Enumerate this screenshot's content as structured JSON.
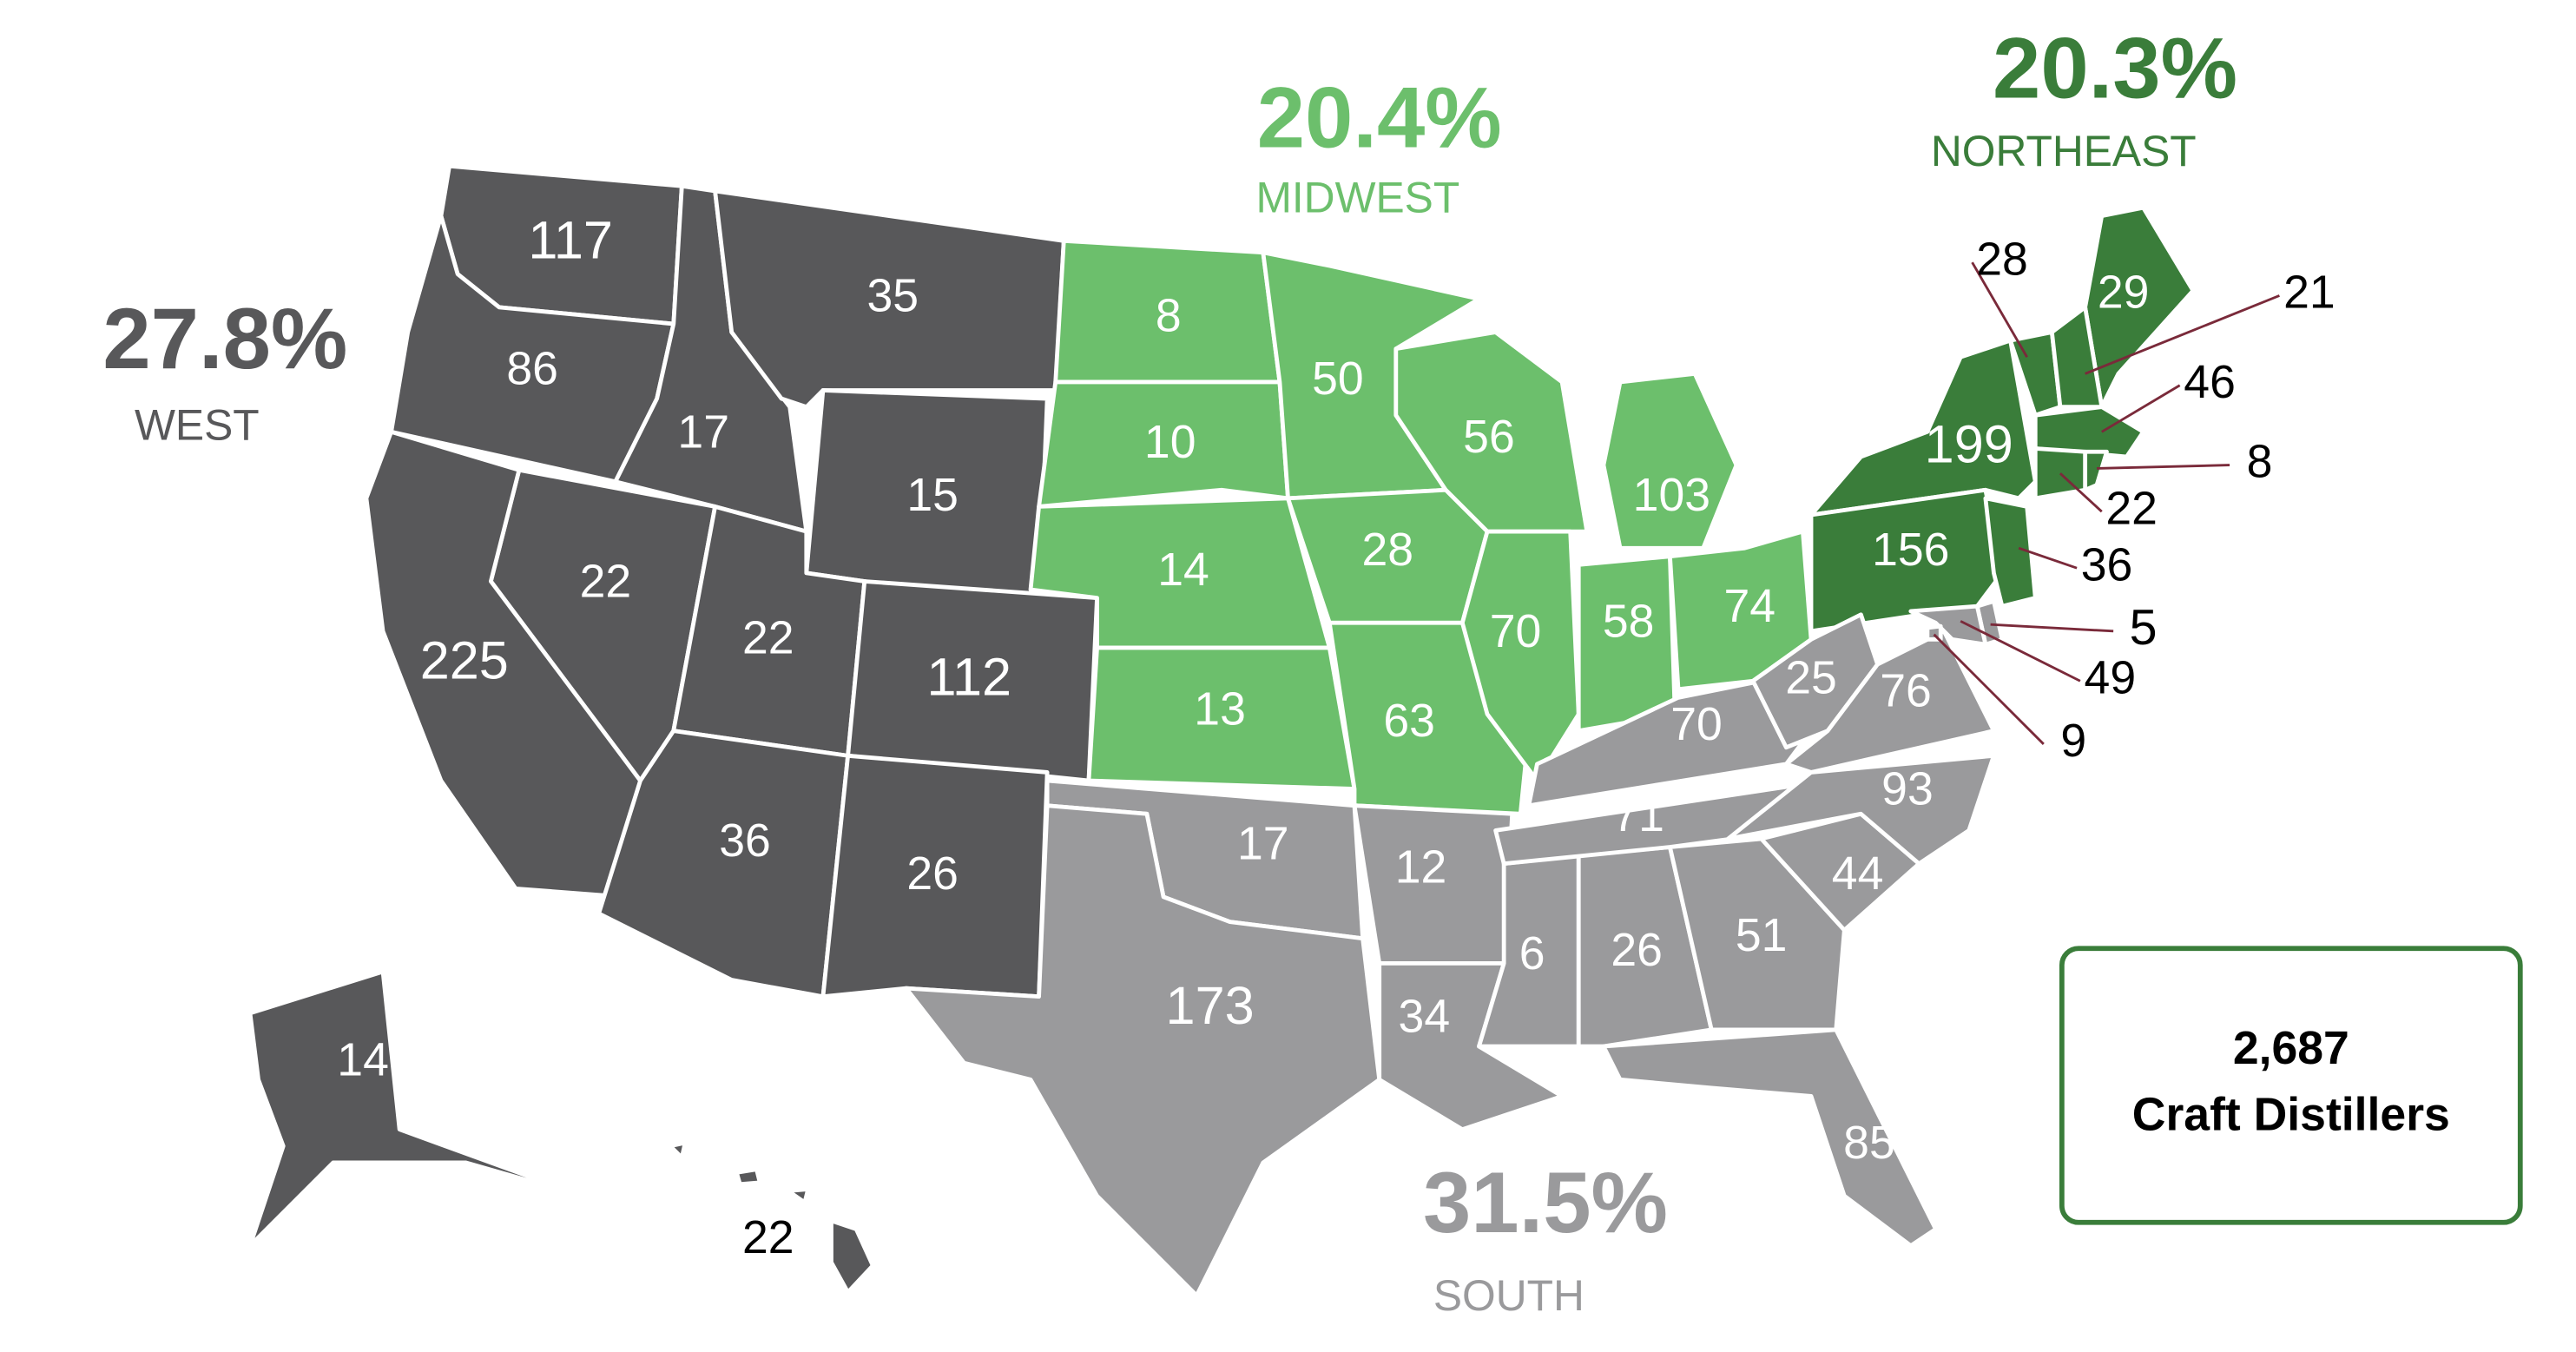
{
  "regions": [
    {
      "share": "27.8%",
      "name": "WEST",
      "counts": [
        117,
        86,
        17,
        35,
        15,
        22,
        22,
        225,
        112,
        36,
        26,
        14,
        22
      ]
    },
    {
      "share": "20.4%",
      "name": "MIDWEST",
      "counts": [
        8,
        10,
        14,
        13,
        50,
        56,
        28,
        63,
        70,
        58,
        103,
        74
      ]
    },
    {
      "share": "20.3%",
      "name": "NORTHEAST",
      "counts": [
        199,
        156,
        29,
        28,
        21,
        46,
        8,
        22,
        36
      ]
    },
    {
      "share": "31.5%",
      "name": "SOUTH",
      "counts": [
        17,
        173,
        12,
        34,
        6,
        26,
        51,
        44,
        85,
        71,
        70,
        25,
        76,
        93,
        5,
        49,
        9
      ]
    }
  ],
  "total": {
    "count": "2,687",
    "label": "Craft Distillers"
  }
}
